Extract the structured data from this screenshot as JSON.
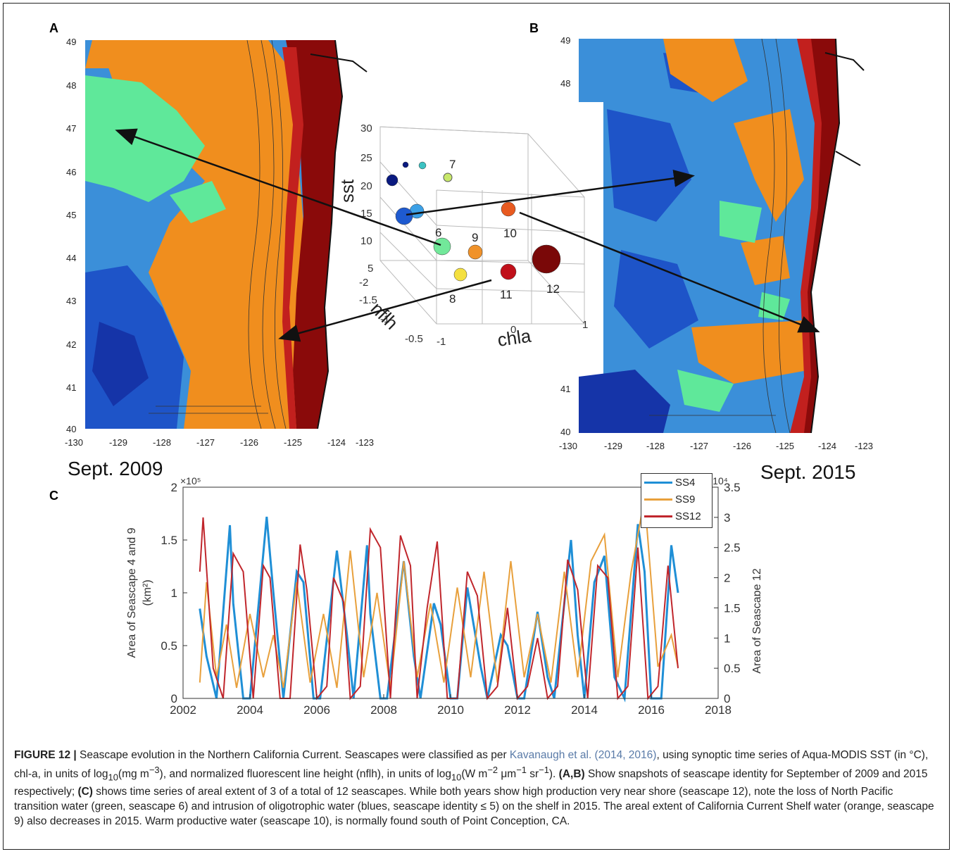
{
  "panels": {
    "a": {
      "letter": "A",
      "snapshot": "Sept. 2009",
      "yticks": [
        "49",
        "48",
        "47",
        "46",
        "45",
        "44",
        "43",
        "42",
        "41",
        "40"
      ],
      "xticks": [
        "-130",
        "-129",
        "-128",
        "-127",
        "-126",
        "-125",
        "-124",
        "-123"
      ]
    },
    "b": {
      "letter": "B",
      "snapshot": "Sept. 2015",
      "yticks": [
        "49",
        "48",
        "41",
        "40"
      ],
      "xticks": [
        "-130",
        "-129",
        "-128",
        "-127",
        "-126",
        "-125",
        "-124",
        "-123"
      ]
    },
    "cube": {
      "sst_label": "sst",
      "nflh_label": "nflh",
      "chla_label": "chla",
      "sst_ticks": [
        "30",
        "25",
        "20",
        "15",
        "10",
        "5"
      ],
      "nflh_ticks": [
        "-2",
        "-1.5",
        "-1",
        "-0.5"
      ],
      "chla_ticks": [
        "-1",
        "0",
        "1"
      ],
      "seascape_labels": [
        "7",
        "6",
        "9",
        "10",
        "8",
        "11",
        "12"
      ]
    },
    "c": {
      "letter": "C"
    }
  },
  "chart_data": {
    "type": "line",
    "ylabel": "Area of Seascape 4 and 9\n(km²)",
    "y2label": "Area of Seascape 12\n(km²)",
    "ylabel_line1": "Area of Seascape 4 and 9",
    "ylabel_line2": "(km²)",
    "y2label_line1": "Area of Seascape 12",
    "y2label_line2": "(km²)",
    "xlim": [
      2002,
      2018
    ],
    "ylim": [
      0,
      200000
    ],
    "y2lim": [
      0,
      35000
    ],
    "xticks": [
      "2002",
      "2004",
      "2006",
      "2008",
      "2010",
      "2012",
      "2014",
      "2016",
      "2018"
    ],
    "yticks": [
      "0",
      "0.5",
      "1",
      "1.5",
      "2"
    ],
    "y2ticks": [
      "0",
      "0.5",
      "1",
      "1.5",
      "2",
      "2.5",
      "3",
      "3.5"
    ],
    "y_multiplier": "×10⁵",
    "y2_multiplier": "×10⁴",
    "series": [
      {
        "name": "SS4",
        "color": "#1f8fd6",
        "axis": "left",
        "x": [
          2002.5,
          2002.7,
          2003.0,
          2003.4,
          2003.5,
          2003.8,
          2004.0,
          2004.5,
          2004.7,
          2005.0,
          2005.4,
          2005.6,
          2005.9,
          2006.1,
          2006.6,
          2006.9,
          2007.1,
          2007.5,
          2007.6,
          2007.9,
          2008.1,
          2008.6,
          2008.9,
          2009.1,
          2009.5,
          2009.7,
          2010.0,
          2010.2,
          2010.5,
          2010.9,
          2011.1,
          2011.5,
          2011.7,
          2012.0,
          2012.2,
          2012.6,
          2012.9,
          2013.1,
          2013.6,
          2013.8,
          2014.0,
          2014.3,
          2014.6,
          2014.9,
          2015.2,
          2015.6,
          2015.8,
          2016.0,
          2016.3,
          2016.6,
          2016.8
        ],
        "y": [
          85000,
          40000,
          0,
          164000,
          90000,
          0,
          0,
          172000,
          100000,
          0,
          120000,
          110000,
          0,
          0,
          140000,
          60000,
          0,
          145000,
          80000,
          0,
          0,
          130000,
          40000,
          0,
          90000,
          70000,
          0,
          0,
          105000,
          30000,
          0,
          60000,
          50000,
          0,
          0,
          82000,
          20000,
          0,
          150000,
          60000,
          0,
          110000,
          135000,
          20000,
          0,
          165000,
          120000,
          0,
          0,
          145000,
          100000
        ]
      },
      {
        "name": "SS9",
        "color": "#e8a03c",
        "axis": "left",
        "x": [
          2002.5,
          2002.7,
          2003.0,
          2003.3,
          2003.6,
          2004.0,
          2004.4,
          2004.7,
          2005.0,
          2005.4,
          2005.8,
          2006.2,
          2006.6,
          2007.0,
          2007.4,
          2007.8,
          2008.2,
          2008.6,
          2009.0,
          2009.4,
          2009.8,
          2010.2,
          2010.6,
          2011.0,
          2011.4,
          2011.8,
          2012.2,
          2012.6,
          2013.0,
          2013.4,
          2013.8,
          2014.2,
          2014.6,
          2015.0,
          2015.4,
          2015.8,
          2016.2,
          2016.6,
          2016.8
        ],
        "y": [
          15000,
          110000,
          20000,
          70000,
          10000,
          80000,
          20000,
          60000,
          10000,
          110000,
          15000,
          80000,
          10000,
          140000,
          20000,
          100000,
          10000,
          130000,
          20000,
          90000,
          15000,
          105000,
          20000,
          120000,
          15000,
          130000,
          20000,
          80000,
          15000,
          120000,
          20000,
          130000,
          155000,
          20000,
          120000,
          190000,
          30000,
          60000,
          30000
        ]
      },
      {
        "name": "SS12",
        "color": "#c0262c",
        "axis": "right",
        "x": [
          2002.5,
          2002.6,
          2002.9,
          2003.2,
          2003.5,
          2003.8,
          2004.1,
          2004.4,
          2004.6,
          2004.9,
          2005.2,
          2005.5,
          2005.7,
          2006.0,
          2006.3,
          2006.5,
          2006.8,
          2007.0,
          2007.3,
          2007.6,
          2007.9,
          2008.2,
          2008.5,
          2008.8,
          2009.0,
          2009.3,
          2009.6,
          2009.9,
          2010.2,
          2010.5,
          2010.8,
          2011.1,
          2011.4,
          2011.7,
          2012.0,
          2012.3,
          2012.6,
          2012.9,
          2013.2,
          2013.5,
          2013.8,
          2014.1,
          2014.4,
          2014.7,
          2015.0,
          2015.3,
          2015.6,
          2015.9,
          2016.2,
          2016.5,
          2016.8
        ],
        "y": [
          21000,
          30000,
          5000,
          0,
          24000,
          21000,
          0,
          22000,
          20000,
          0,
          0,
          25500,
          18000,
          0,
          2000,
          20000,
          16000,
          0,
          2000,
          28000,
          25000,
          0,
          27000,
          22000,
          0,
          15000,
          26000,
          0,
          0,
          21000,
          17000,
          0,
          2000,
          15000,
          0,
          2000,
          10000,
          0,
          2000,
          23000,
          18000,
          0,
          22000,
          20000,
          0,
          2000,
          25000,
          0,
          2000,
          22000,
          5000
        ]
      }
    ],
    "legend_position": "top-right",
    "grid": false
  },
  "caption": {
    "figure_label": "FIGURE 12 |",
    "t1": " Seascape evolution in the Northern California Current. Seascapes were classified as per ",
    "ref": "Kavanaugh et al. (2014, 2016)",
    "t2": ", using synoptic time series of Aqua-MODIS SST (in °C), chl-a, in units of log",
    "sub10a": "10",
    "t3": "(mg m",
    "sup_m3": "−3",
    "t4": "), and normalized fluorescent line height (nflh), in units of log",
    "sub10b": "10",
    "t5": "(W m",
    "sup_m2": "−2",
    "t6": " μm",
    "sup_m1a": "−1",
    "t7": " sr",
    "sup_m1b": "−1",
    "t8": "). ",
    "bold_ab": "(A,B)",
    "t9": " Show snapshots of seascape identity for September of 2009 and 2015 respectively; ",
    "bold_c": "(C)",
    "t10": " shows time series of areal extent of 3 of a total of 12 seascapes. While both years show high production very near shore (seascape 12), note the loss of North Pacific transition water (green, seascape 6) and intrusion of oligotrophic water (blues, seascape identity ≤ 5) on the shelf in 2015. The areal extent of California Current Shelf water (orange, seascape 9) also decreases in 2015. Warm productive water (seascape 10), is normally found south of Point Conception, CA."
  }
}
